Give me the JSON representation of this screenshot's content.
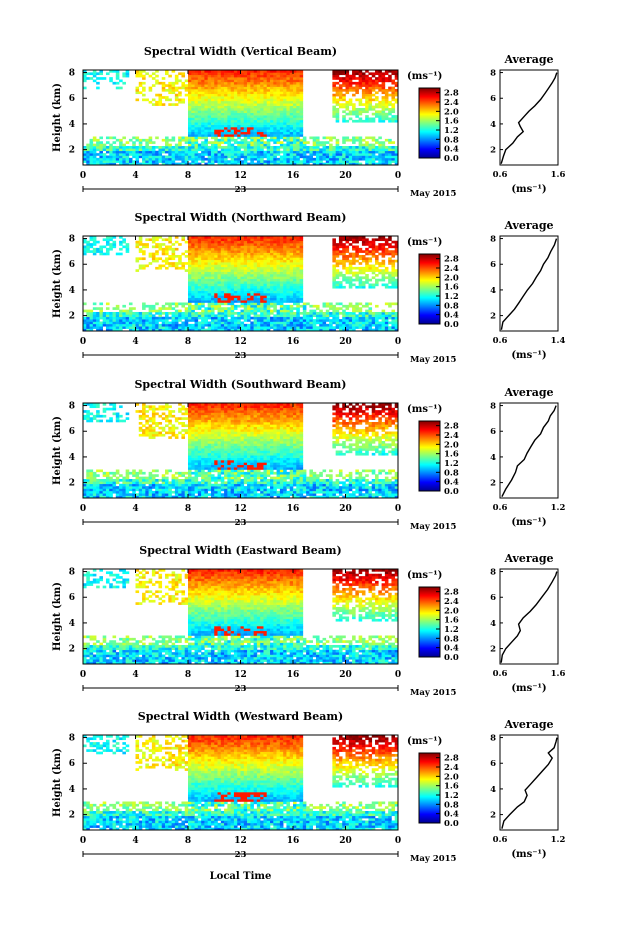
{
  "figure": {
    "x_axis_label": "Local Time",
    "date_label": "May 2015",
    "date_day": "23",
    "unit_label": "(ms⁻¹)"
  },
  "chart_data": [
    {
      "type": "heatmap",
      "title": "Spectral Width (Vertical Beam)",
      "xlabel": "",
      "ylabel": "Height (km)",
      "x_ticks": [
        "0",
        "4",
        "8",
        "12",
        "16",
        "20",
        "0"
      ],
      "xlim": [
        0,
        24
      ],
      "y_ticks": [
        "2",
        "4",
        "6",
        "8"
      ],
      "ylim": [
        0.8,
        8.2
      ],
      "colorbar": {
        "ticks": [
          "0.0",
          "0.4",
          "0.8",
          "1.2",
          "1.6",
          "2.0",
          "2.4",
          "2.8"
        ],
        "range": [
          0.0,
          3.0
        ]
      },
      "average": {
        "title": "Average",
        "xlabel": "(ms⁻¹)",
        "x_ticks": [
          "0.6",
          "1.6"
        ],
        "xlim": [
          0.6,
          1.6
        ],
        "y_ticks": [
          "2",
          "4",
          "6",
          "8"
        ],
        "ylim": [
          0.8,
          8.2
        ],
        "points": [
          [
            0.62,
            0.9
          ],
          [
            0.66,
            1.5
          ],
          [
            0.7,
            2.0
          ],
          [
            0.82,
            2.5
          ],
          [
            0.9,
            3.0
          ],
          [
            1.0,
            3.4
          ],
          [
            0.95,
            3.8
          ],
          [
            0.92,
            4.1
          ],
          [
            1.02,
            4.6
          ],
          [
            1.1,
            5.0
          ],
          [
            1.2,
            5.4
          ],
          [
            1.3,
            5.9
          ],
          [
            1.38,
            6.4
          ],
          [
            1.44,
            6.8
          ],
          [
            1.5,
            7.2
          ],
          [
            1.55,
            7.6
          ],
          [
            1.58,
            8.0
          ]
        ]
      }
    },
    {
      "type": "heatmap",
      "title": "Spectral Width (Northward Beam)",
      "xlabel": "",
      "ylabel": "Height (km)",
      "x_ticks": [
        "0",
        "4",
        "8",
        "12",
        "16",
        "20",
        "0"
      ],
      "xlim": [
        0,
        24
      ],
      "y_ticks": [
        "2",
        "4",
        "6",
        "8"
      ],
      "ylim": [
        0.8,
        8.2
      ],
      "colorbar": {
        "ticks": [
          "0.0",
          "0.4",
          "0.8",
          "1.2",
          "1.6",
          "2.0",
          "2.4",
          "2.8"
        ],
        "range": [
          0.0,
          3.0
        ]
      },
      "average": {
        "title": "Average",
        "xlabel": "(ms⁻¹)",
        "x_ticks": [
          "0.6",
          "1.4"
        ],
        "xlim": [
          0.6,
          1.4
        ],
        "y_ticks": [
          "2",
          "4",
          "6",
          "8"
        ],
        "ylim": [
          0.8,
          8.2
        ],
        "points": [
          [
            0.62,
            0.9
          ],
          [
            0.64,
            1.5
          ],
          [
            0.72,
            2.0
          ],
          [
            0.8,
            2.5
          ],
          [
            0.86,
            3.0
          ],
          [
            0.92,
            3.5
          ],
          [
            0.98,
            4.0
          ],
          [
            1.05,
            4.5
          ],
          [
            1.1,
            5.0
          ],
          [
            1.16,
            5.5
          ],
          [
            1.2,
            6.0
          ],
          [
            1.26,
            6.5
          ],
          [
            1.3,
            7.0
          ],
          [
            1.35,
            7.5
          ],
          [
            1.38,
            8.0
          ]
        ]
      }
    },
    {
      "type": "heatmap",
      "title": "Spectral Width (Southward Beam)",
      "xlabel": "",
      "ylabel": "Height (km)",
      "x_ticks": [
        "0",
        "4",
        "8",
        "12",
        "16",
        "20",
        "0"
      ],
      "xlim": [
        0,
        24
      ],
      "y_ticks": [
        "2",
        "4",
        "6",
        "8"
      ],
      "ylim": [
        0.8,
        8.2
      ],
      "colorbar": {
        "ticks": [
          "0.0",
          "0.4",
          "0.8",
          "1.2",
          "1.6",
          "2.0",
          "2.4",
          "2.8"
        ],
        "range": [
          0.0,
          3.0
        ]
      },
      "average": {
        "title": "Average",
        "xlabel": "(ms⁻¹)",
        "x_ticks": [
          "0.6",
          "1.2"
        ],
        "xlim": [
          0.6,
          1.2
        ],
        "y_ticks": [
          "2",
          "4",
          "6",
          "8"
        ],
        "ylim": [
          0.8,
          8.2
        ],
        "points": [
          [
            0.62,
            0.9
          ],
          [
            0.66,
            1.5
          ],
          [
            0.72,
            2.2
          ],
          [
            0.76,
            2.8
          ],
          [
            0.78,
            3.3
          ],
          [
            0.85,
            3.8
          ],
          [
            0.88,
            4.3
          ],
          [
            0.92,
            4.8
          ],
          [
            0.96,
            5.3
          ],
          [
            1.02,
            5.8
          ],
          [
            1.05,
            6.3
          ],
          [
            1.1,
            6.8
          ],
          [
            1.12,
            7.2
          ],
          [
            1.16,
            7.6
          ],
          [
            1.18,
            8.0
          ]
        ]
      }
    },
    {
      "type": "heatmap",
      "title": "Spectral Width (Eastward Beam)",
      "xlabel": "",
      "ylabel": "Height (km)",
      "x_ticks": [
        "0",
        "4",
        "8",
        "12",
        "16",
        "20",
        "0"
      ],
      "xlim": [
        0,
        24
      ],
      "y_ticks": [
        "2",
        "4",
        "6",
        "8"
      ],
      "ylim": [
        0.8,
        8.2
      ],
      "colorbar": {
        "ticks": [
          "0.0",
          "0.4",
          "0.8",
          "1.2",
          "1.6",
          "2.0",
          "2.4",
          "2.8"
        ],
        "range": [
          0.0,
          3.0
        ]
      },
      "average": {
        "title": "Average",
        "xlabel": "(ms⁻¹)",
        "x_ticks": [
          "0.6",
          "1.6"
        ],
        "xlim": [
          0.6,
          1.6
        ],
        "y_ticks": [
          "2",
          "4",
          "6",
          "8"
        ],
        "ylim": [
          0.8,
          8.2
        ],
        "points": [
          [
            0.62,
            0.9
          ],
          [
            0.64,
            1.5
          ],
          [
            0.7,
            2.0
          ],
          [
            0.8,
            2.5
          ],
          [
            0.9,
            3.0
          ],
          [
            0.95,
            3.4
          ],
          [
            0.92,
            3.9
          ],
          [
            1.0,
            4.4
          ],
          [
            1.12,
            4.9
          ],
          [
            1.22,
            5.4
          ],
          [
            1.32,
            6.0
          ],
          [
            1.42,
            6.6
          ],
          [
            1.5,
            7.2
          ],
          [
            1.56,
            7.7
          ],
          [
            1.58,
            8.0
          ]
        ]
      }
    },
    {
      "type": "heatmap",
      "title": "Spectral Width (Westward Beam)",
      "xlabel": "Local Time",
      "ylabel": "Height (km)",
      "x_ticks": [
        "0",
        "4",
        "8",
        "12",
        "16",
        "20",
        "0"
      ],
      "xlim": [
        0,
        24
      ],
      "y_ticks": [
        "2",
        "4",
        "6",
        "8"
      ],
      "ylim": [
        0.8,
        8.2
      ],
      "colorbar": {
        "ticks": [
          "0.0",
          "0.4",
          "0.8",
          "1.2",
          "1.6",
          "2.0",
          "2.4",
          "2.8"
        ],
        "range": [
          0.0,
          3.0
        ]
      },
      "average": {
        "title": "Average",
        "xlabel": "(ms⁻¹)",
        "x_ticks": [
          "0.6",
          "1.2"
        ],
        "xlim": [
          0.6,
          1.2
        ],
        "y_ticks": [
          "2",
          "4",
          "6",
          "8"
        ],
        "ylim": [
          0.8,
          8.2
        ],
        "points": [
          [
            0.62,
            0.9
          ],
          [
            0.64,
            1.5
          ],
          [
            0.7,
            2.0
          ],
          [
            0.78,
            2.6
          ],
          [
            0.85,
            3.0
          ],
          [
            0.88,
            3.5
          ],
          [
            0.86,
            3.9
          ],
          [
            0.92,
            4.4
          ],
          [
            0.98,
            4.9
          ],
          [
            1.04,
            5.4
          ],
          [
            1.1,
            5.9
          ],
          [
            1.14,
            6.4
          ],
          [
            1.1,
            6.8
          ],
          [
            1.16,
            7.2
          ],
          [
            1.18,
            7.7
          ],
          [
            1.19,
            8.0
          ]
        ]
      }
    }
  ]
}
